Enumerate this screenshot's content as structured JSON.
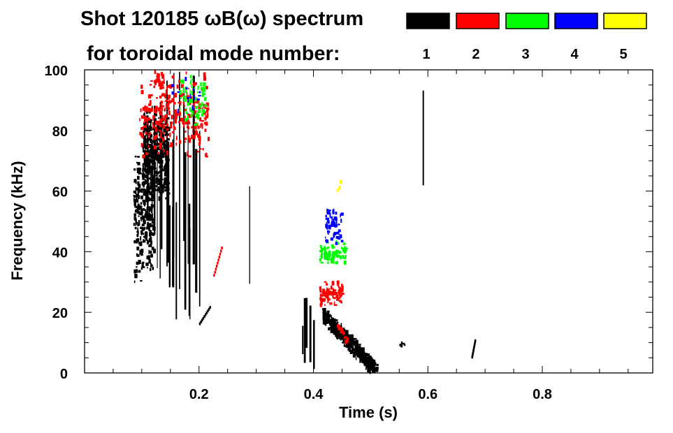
{
  "chart_data": {
    "type": "heatmap",
    "title": "Shot 120185 ωB(ω) spectrum",
    "subtitle": "for toroidal mode number:",
    "xlabel": "Time (s)",
    "ylabel": "Frequency (kHz)",
    "xlim": [
      0,
      0.993
    ],
    "ylim": [
      0,
      100
    ],
    "xticks": [
      0.2,
      0.4,
      0.6,
      0.8
    ],
    "xtick_labels": [
      "0.2",
      "0.4",
      "0.6",
      "0.8"
    ],
    "yticks": [
      0,
      20,
      40,
      60,
      80,
      100
    ],
    "ytick_labels": [
      "0",
      "20",
      "40",
      "60",
      "80",
      "100"
    ],
    "legend": {
      "placement": "top-right",
      "entries": [
        {
          "mode": "1",
          "color": "#000000"
        },
        {
          "mode": "2",
          "color": "#ff0000"
        },
        {
          "mode": "3",
          "color": "#00ff00"
        },
        {
          "mode": "4",
          "color": "#0000ff"
        },
        {
          "mode": "5",
          "color": "#ffff00"
        }
      ]
    },
    "features": [
      {
        "mode": 1,
        "t": [
          0.09,
          0.205
        ],
        "f": [
          18,
          100
        ],
        "density": 0.55,
        "style": "streaks"
      },
      {
        "mode": 1,
        "t": [
          0.1,
          0.145
        ],
        "f": [
          55,
          90
        ],
        "density": 0.9,
        "style": "blob"
      },
      {
        "mode": 1,
        "t": [
          0.085,
          0.12
        ],
        "f": [
          30,
          75
        ],
        "density": 0.6,
        "style": "blob"
      },
      {
        "mode": 1,
        "t": [
          0.14,
          0.19
        ],
        "f": [
          15,
          60
        ],
        "density": 0.45,
        "style": "streaks"
      },
      {
        "mode": 2,
        "t": [
          0.095,
          0.215
        ],
        "f": [
          70,
          100
        ],
        "density": 0.25,
        "style": "blob"
      },
      {
        "mode": 2,
        "t": [
          0.12,
          0.135
        ],
        "f": [
          93,
          100
        ],
        "density": 0.8,
        "style": "blob"
      },
      {
        "mode": 3,
        "t": [
          0.165,
          0.21
        ],
        "f": [
          80,
          100
        ],
        "density": 0.25,
        "style": "blob"
      },
      {
        "mode": 4,
        "t": [
          0.15,
          0.2
        ],
        "f": [
          85,
          100
        ],
        "density": 0.06,
        "style": "blob"
      },
      {
        "mode": 2,
        "t": [
          0.225,
          0.24
        ],
        "f": [
          32,
          42
        ],
        "density": 0.7,
        "style": "diag"
      },
      {
        "mode": 1,
        "t": [
          0.284,
          0.29
        ],
        "f": [
          25,
          70
        ],
        "density": 0.8,
        "style": "streaks"
      },
      {
        "mode": 1,
        "t": [
          0.2,
          0.22
        ],
        "f": [
          16,
          22
        ],
        "density": 0.5,
        "style": "diag"
      },
      {
        "mode": 1,
        "t": [
          0.38,
          0.405
        ],
        "f": [
          1,
          25
        ],
        "density": 0.7,
        "style": "streaks"
      },
      {
        "mode": 1,
        "t": [
          0.415,
          0.51
        ],
        "f": [
          1,
          23
        ],
        "density": 0.75,
        "style": "descend"
      },
      {
        "mode": 2,
        "t": [
          0.41,
          0.45
        ],
        "f": [
          22,
          31
        ],
        "density": 0.8,
        "style": "blob"
      },
      {
        "mode": 2,
        "t": [
          0.44,
          0.46
        ],
        "f": [
          10,
          18
        ],
        "density": 0.35,
        "style": "descend"
      },
      {
        "mode": 3,
        "t": [
          0.41,
          0.455
        ],
        "f": [
          36,
          44
        ],
        "density": 0.7,
        "style": "blob"
      },
      {
        "mode": 4,
        "t": [
          0.42,
          0.448
        ],
        "f": [
          43,
          55
        ],
        "density": 0.55,
        "style": "blob"
      },
      {
        "mode": 5,
        "t": [
          0.44,
          0.45
        ],
        "f": [
          60,
          64
        ],
        "density": 0.2,
        "style": "blob"
      },
      {
        "mode": 1,
        "t": [
          0.588,
          0.592
        ],
        "f": [
          58,
          100
        ],
        "density": 0.9,
        "style": "streaks"
      },
      {
        "mode": 1,
        "t": [
          0.676,
          0.682
        ],
        "f": [
          5,
          11
        ],
        "density": 0.9,
        "style": "diag"
      },
      {
        "mode": 1,
        "t": [
          0.55,
          0.56
        ],
        "f": [
          9,
          11
        ],
        "density": 0.6,
        "style": "blob"
      }
    ]
  }
}
